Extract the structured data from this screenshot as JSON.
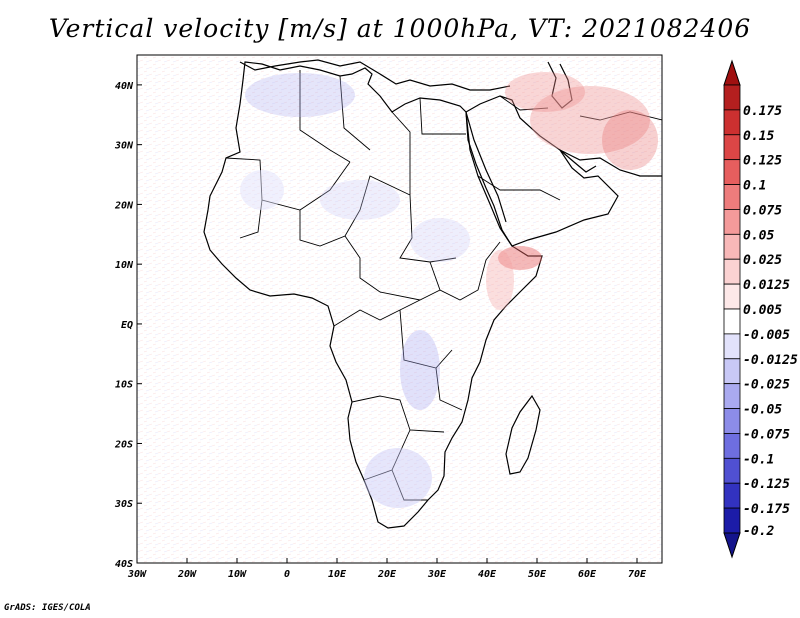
{
  "title": "Vertical velocity [m/s] at 1000hPa, VT: 2021082406",
  "credit": "GrADS: IGES/COLA",
  "map": {
    "variable": "Vertical velocity",
    "units": "m/s",
    "level": "1000hPa",
    "valid_time": "2021082406",
    "lon_range": [
      -30,
      75
    ],
    "lat_range": [
      -40,
      45
    ],
    "lon_ticks": [
      {
        "value": -30,
        "label": "30W"
      },
      {
        "value": -20,
        "label": "20W"
      },
      {
        "value": -10,
        "label": "10W"
      },
      {
        "value": 0,
        "label": "0"
      },
      {
        "value": 10,
        "label": "10E"
      },
      {
        "value": 20,
        "label": "20E"
      },
      {
        "value": 30,
        "label": "30E"
      },
      {
        "value": 40,
        "label": "40E"
      },
      {
        "value": 50,
        "label": "50E"
      },
      {
        "value": 60,
        "label": "60E"
      },
      {
        "value": 70,
        "label": "70E"
      }
    ],
    "lat_ticks": [
      {
        "value": 40,
        "label": "40N"
      },
      {
        "value": 30,
        "label": "30N"
      },
      {
        "value": 20,
        "label": "20N"
      },
      {
        "value": 10,
        "label": "10N"
      },
      {
        "value": 0,
        "label": "EQ"
      },
      {
        "value": -10,
        "label": "10S"
      },
      {
        "value": -20,
        "label": "20S"
      },
      {
        "value": -30,
        "label": "30S"
      },
      {
        "value": -40,
        "label": "40S"
      }
    ]
  },
  "colorbar": {
    "levels": [
      {
        "label": "0.175",
        "color": "#b41f1f"
      },
      {
        "label": "0.15",
        "color": "#cc3030"
      },
      {
        "label": "0.125",
        "color": "#dc4646"
      },
      {
        "label": "0.1",
        "color": "#e65e5e"
      },
      {
        "label": "0.075",
        "color": "#ee7c7c"
      },
      {
        "label": "0.05",
        "color": "#f49a9a"
      },
      {
        "label": "0.025",
        "color": "#f8b8b8"
      },
      {
        "label": "0.0125",
        "color": "#fbd2d2"
      },
      {
        "label": "0.005",
        "color": "#fde8e8"
      },
      {
        "label": "-0.005",
        "color": "#ffffff"
      },
      {
        "label": "-0.0125",
        "color": "#e2e2fb"
      },
      {
        "label": "-0.025",
        "color": "#c8c8f6"
      },
      {
        "label": "-0.05",
        "color": "#aaaaf0"
      },
      {
        "label": "-0.075",
        "color": "#8c8ce8"
      },
      {
        "label": "-0.1",
        "color": "#6e6ee0"
      },
      {
        "label": "-0.125",
        "color": "#5050d2"
      },
      {
        "label": "-0.175",
        "color": "#3232c0"
      },
      {
        "label": "-0.2",
        "color": "#1c1ca8"
      }
    ],
    "top_arrow_color": "#a01010",
    "bottom_arrow_color": "#14148c"
  }
}
